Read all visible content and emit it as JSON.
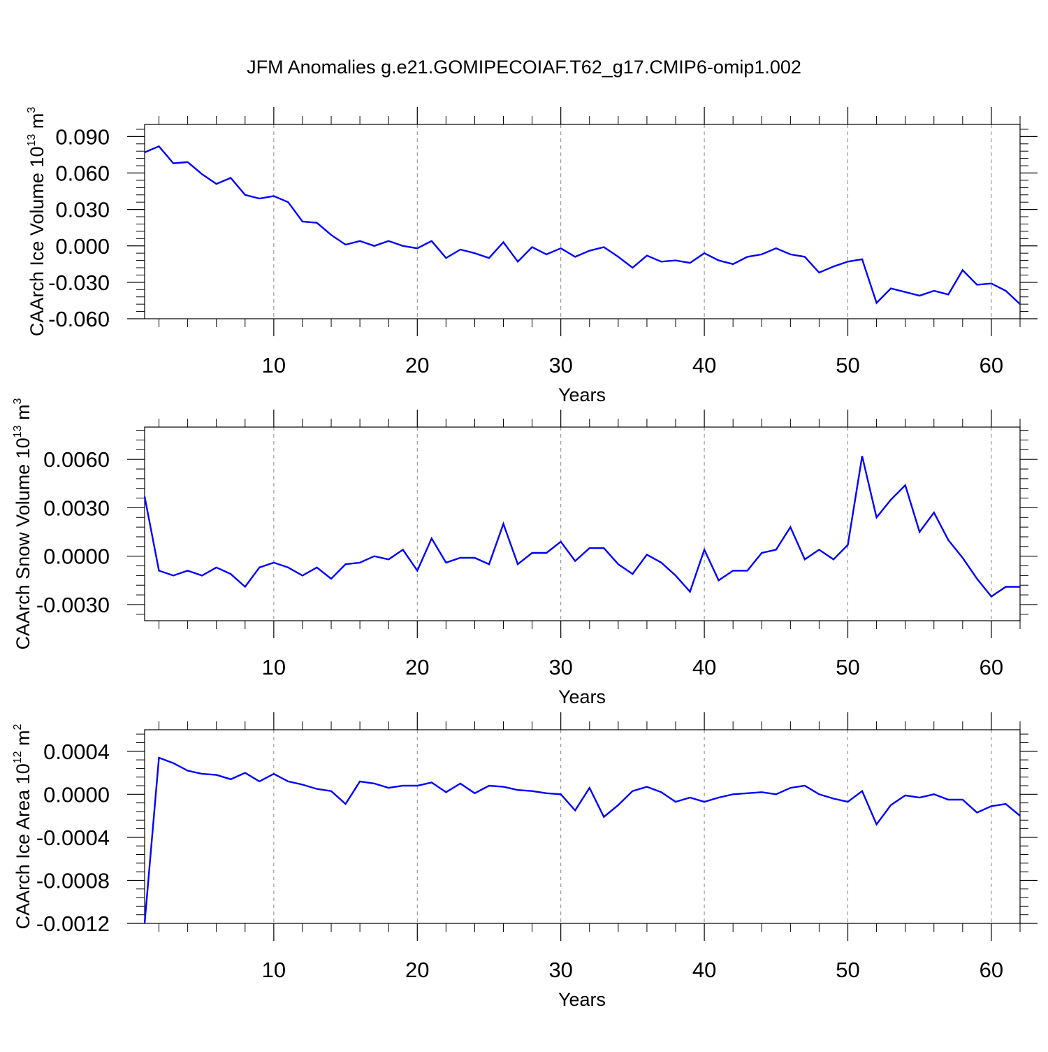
{
  "title": "JFM Anomalies g.e21.GOMIPECOIAF.T62_g17.CMIP6-omip1.002",
  "colors": {
    "series": "#0000ff",
    "axis": "#000000",
    "grid": "#888888",
    "background": "#ffffff"
  },
  "chart_data": [
    {
      "type": "line",
      "xlabel": "Years",
      "ylabel": {
        "text": "CAArch Ice Volume 10",
        "sup": "13",
        "unit": " m",
        "unit_sup": "3"
      },
      "xlim": [
        1,
        62
      ],
      "ylim": [
        -0.06,
        0.1
      ],
      "xticks": [
        10,
        20,
        30,
        40,
        50,
        60
      ],
      "xtick_labels": [
        "10",
        "20",
        "30",
        "40",
        "50",
        "60"
      ],
      "yticks": [
        -0.06,
        -0.03,
        0.0,
        0.03,
        0.06,
        0.09
      ],
      "ytick_labels": [
        "-0.060",
        "-0.030",
        "0.000",
        "0.030",
        "0.060",
        "0.090"
      ],
      "series": [
        {
          "name": "Ice Volume",
          "values": [
            0.077,
            0.082,
            0.068,
            0.069,
            0.059,
            0.051,
            0.056,
            0.042,
            0.039,
            0.041,
            0.036,
            0.02,
            0.019,
            0.009,
            0.001,
            0.004,
            0.0,
            0.004,
            0.0,
            -0.002,
            0.004,
            -0.01,
            -0.003,
            -0.006,
            -0.01,
            0.003,
            -0.013,
            -0.001,
            -0.007,
            -0.002,
            -0.009,
            -0.004,
            -0.001,
            -0.009,
            -0.018,
            -0.008,
            -0.013,
            -0.012,
            -0.014,
            -0.006,
            -0.012,
            -0.015,
            -0.009,
            -0.007,
            -0.002,
            -0.007,
            -0.009,
            -0.022,
            -0.017,
            -0.013,
            -0.011,
            -0.047,
            -0.035,
            -0.038,
            -0.041,
            -0.037,
            -0.04,
            -0.02,
            -0.032,
            -0.031,
            -0.037,
            -0.048
          ]
        }
      ]
    },
    {
      "type": "line",
      "xlabel": "Years",
      "ylabel": {
        "text": "CAArch Snow Volume 10",
        "sup": "13",
        "unit": " m",
        "unit_sup": "3"
      },
      "xlim": [
        1,
        62
      ],
      "ylim": [
        -0.004,
        0.008
      ],
      "xticks": [
        10,
        20,
        30,
        40,
        50,
        60
      ],
      "xtick_labels": [
        "10",
        "20",
        "30",
        "40",
        "50",
        "60"
      ],
      "yticks": [
        -0.003,
        0.0,
        0.003,
        0.006
      ],
      "ytick_labels": [
        "-0.0030",
        "0.0000",
        "0.0030",
        "0.0060"
      ],
      "series": [
        {
          "name": "Snow Volume",
          "values": [
            0.0037,
            -0.0009,
            -0.0012,
            -0.0009,
            -0.0012,
            -0.0007,
            -0.0011,
            -0.0019,
            -0.0007,
            -0.0004,
            -0.0007,
            -0.0012,
            -0.0007,
            -0.0014,
            -0.0005,
            -0.0004,
            0.0,
            -0.0002,
            0.0004,
            -0.0009,
            0.0011,
            -0.0004,
            -0.0001,
            -0.0001,
            -0.0005,
            0.002,
            -0.0005,
            0.0002,
            0.0002,
            0.0009,
            -0.0003,
            0.0005,
            0.0005,
            -0.0005,
            -0.0011,
            0.0001,
            -0.0004,
            -0.0012,
            -0.0022,
            0.0004,
            -0.0015,
            -0.0009,
            -0.0009,
            0.0002,
            0.0004,
            0.0018,
            -0.0002,
            0.0004,
            -0.0002,
            0.0007,
            0.0062,
            0.0024,
            0.0035,
            0.0044,
            0.0015,
            0.0027,
            0.001,
            -0.0001,
            -0.0014,
            -0.0025,
            -0.0019,
            -0.0019
          ]
        }
      ]
    },
    {
      "type": "line",
      "xlabel": "Years",
      "ylabel": {
        "text": "CAArch Ice Area 10",
        "sup": "12",
        "unit": " m",
        "unit_sup": "2"
      },
      "xlim": [
        1,
        62
      ],
      "ylim": [
        -0.0012,
        0.0006
      ],
      "xticks": [
        10,
        20,
        30,
        40,
        50,
        60
      ],
      "xtick_labels": [
        "10",
        "20",
        "30",
        "40",
        "50",
        "60"
      ],
      "yticks": [
        -0.0012,
        -0.0008,
        -0.0004,
        0.0,
        0.0004
      ],
      "ytick_labels": [
        "-0.0012",
        "-0.0008",
        "-0.0004",
        "0.0000",
        "0.0004"
      ],
      "series": [
        {
          "name": "Ice Area",
          "values": [
            -0.0012,
            0.00034,
            0.00029,
            0.00022,
            0.00019,
            0.00018,
            0.00014,
            0.0002,
            0.00012,
            0.00019,
            0.00012,
            9e-05,
            5e-05,
            3e-05,
            -9e-05,
            0.00012,
            0.0001,
            6e-05,
            8e-05,
            8e-05,
            0.00011,
            2e-05,
            0.0001,
            1e-05,
            8e-05,
            7e-05,
            4e-05,
            3e-05,
            1e-05,
            0.0,
            -0.00015,
            6e-05,
            -0.00021,
            -0.0001,
            3e-05,
            7e-05,
            2e-05,
            -7e-05,
            -3e-05,
            -7e-05,
            -3e-05,
            0.0,
            1e-05,
            2e-05,
            0.0,
            6e-05,
            8e-05,
            0.0,
            -4e-05,
            -7e-05,
            3e-05,
            -0.00028,
            -0.0001,
            -1e-05,
            -3e-05,
            0.0,
            -5e-05,
            -5e-05,
            -0.00017,
            -0.00011,
            -9e-05,
            -0.0002
          ]
        }
      ]
    }
  ]
}
